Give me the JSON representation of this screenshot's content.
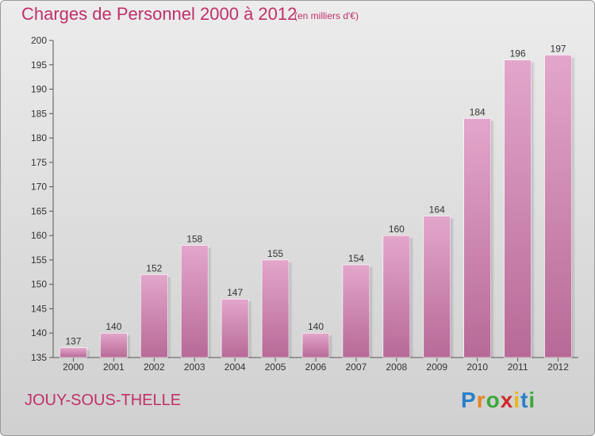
{
  "header": {
    "title": "Charges de Personnel 2000 à 2012",
    "subtitle": "(en milliers d'€)"
  },
  "footer": {
    "commune": "JOUY-SOUS-THELLE"
  },
  "logo": {
    "letters": [
      "P",
      "r",
      "o",
      "x",
      "i",
      "t",
      "i"
    ],
    "colors": [
      "#2a80c8",
      "#e8841c",
      "#3aa83a",
      "#d0282a",
      "#e8b818",
      "#2a80c8",
      "#3aa83a"
    ]
  },
  "colors": {
    "bar_top": "#e3a6cb",
    "bar_bottom": "#b76a97",
    "title": "#c0306a"
  },
  "chart_data": {
    "type": "bar",
    "title": "Charges de Personnel 2000 à 2012",
    "subtitle": "(en milliers d'€)",
    "categories": [
      "2000",
      "2001",
      "2002",
      "2003",
      "2004",
      "2005",
      "2006",
      "2007",
      "2008",
      "2009",
      "2010",
      "2011",
      "2012"
    ],
    "values": [
      137,
      140,
      152,
      158,
      147,
      155,
      140,
      154,
      160,
      164,
      184,
      196,
      197
    ],
    "ylim": [
      135,
      200
    ],
    "yticks": [
      135,
      140,
      145,
      150,
      155,
      160,
      165,
      170,
      175,
      180,
      185,
      190,
      195,
      200
    ],
    "grid": false,
    "legend": "none"
  }
}
